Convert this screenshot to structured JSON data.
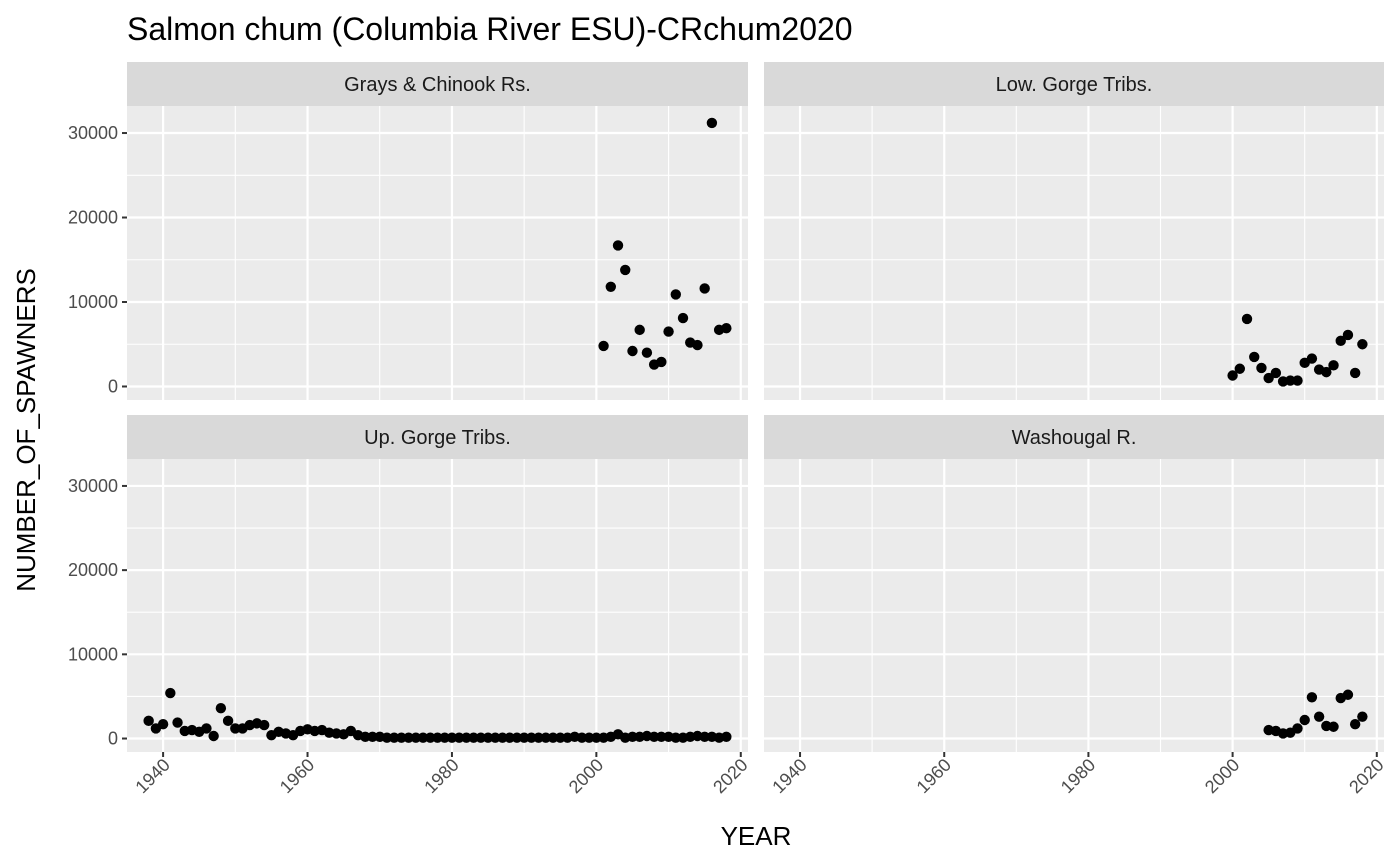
{
  "chart_data": {
    "type": "scatter",
    "title": "Salmon chum (Columbia River ESU)-CRchum2020",
    "xlabel": "YEAR",
    "ylabel": "NUMBER_OF_SPAWNERS",
    "xlim": [
      1935,
      2021
    ],
    "ylim": [
      -1600,
      33200
    ],
    "x_ticks": [
      1940,
      1960,
      1980,
      2000,
      2020
    ],
    "y_ticks": [
      0,
      10000,
      20000,
      30000
    ],
    "grid": true,
    "facets": [
      {
        "name": "Grays & Chinook Rs.",
        "points": [
          [
            2001,
            4800
          ],
          [
            2002,
            11800
          ],
          [
            2003,
            16700
          ],
          [
            2004,
            13800
          ],
          [
            2005,
            4200
          ],
          [
            2006,
            6700
          ],
          [
            2007,
            4000
          ],
          [
            2008,
            2600
          ],
          [
            2009,
            2900
          ],
          [
            2010,
            6500
          ],
          [
            2011,
            10900
          ],
          [
            2012,
            8100
          ],
          [
            2013,
            5200
          ],
          [
            2014,
            4900
          ],
          [
            2015,
            11600
          ],
          [
            2016,
            31200
          ],
          [
            2017,
            6700
          ],
          [
            2018,
            6900
          ]
        ]
      },
      {
        "name": "Low. Gorge Tribs.",
        "points": [
          [
            2000,
            1300
          ],
          [
            2001,
            2100
          ],
          [
            2002,
            8000
          ],
          [
            2003,
            3500
          ],
          [
            2004,
            2200
          ],
          [
            2005,
            1000
          ],
          [
            2006,
            1600
          ],
          [
            2007,
            600
          ],
          [
            2008,
            700
          ],
          [
            2009,
            700
          ],
          [
            2010,
            2800
          ],
          [
            2011,
            3300
          ],
          [
            2012,
            2000
          ],
          [
            2013,
            1700
          ],
          [
            2014,
            2500
          ],
          [
            2015,
            5400
          ],
          [
            2016,
            6100
          ],
          [
            2017,
            1600
          ],
          [
            2018,
            5000
          ]
        ]
      },
      {
        "name": "Up. Gorge Tribs.",
        "points": [
          [
            1938,
            2100
          ],
          [
            1939,
            1200
          ],
          [
            1940,
            1700
          ],
          [
            1941,
            5400
          ],
          [
            1942,
            1900
          ],
          [
            1943,
            900
          ],
          [
            1944,
            1000
          ],
          [
            1945,
            800
          ],
          [
            1946,
            1200
          ],
          [
            1947,
            300
          ],
          [
            1948,
            3600
          ],
          [
            1949,
            2100
          ],
          [
            1950,
            1200
          ],
          [
            1951,
            1200
          ],
          [
            1952,
            1600
          ],
          [
            1953,
            1800
          ],
          [
            1954,
            1600
          ],
          [
            1955,
            400
          ],
          [
            1956,
            800
          ],
          [
            1957,
            600
          ],
          [
            1958,
            400
          ],
          [
            1959,
            900
          ],
          [
            1960,
            1100
          ],
          [
            1961,
            900
          ],
          [
            1962,
            1000
          ],
          [
            1963,
            700
          ],
          [
            1964,
            600
          ],
          [
            1965,
            500
          ],
          [
            1966,
            900
          ],
          [
            1967,
            400
          ],
          [
            1968,
            200
          ],
          [
            1969,
            200
          ],
          [
            1970,
            200
          ],
          [
            1971,
            100
          ],
          [
            1972,
            100
          ],
          [
            1973,
            100
          ],
          [
            1974,
            100
          ],
          [
            1975,
            100
          ],
          [
            1976,
            100
          ],
          [
            1977,
            100
          ],
          [
            1978,
            100
          ],
          [
            1979,
            100
          ],
          [
            1980,
            100
          ],
          [
            1981,
            100
          ],
          [
            1982,
            100
          ],
          [
            1983,
            100
          ],
          [
            1984,
            100
          ],
          [
            1985,
            100
          ],
          [
            1986,
            100
          ],
          [
            1987,
            100
          ],
          [
            1988,
            100
          ],
          [
            1989,
            100
          ],
          [
            1990,
            100
          ],
          [
            1991,
            100
          ],
          [
            1992,
            100
          ],
          [
            1993,
            100
          ],
          [
            1994,
            100
          ],
          [
            1995,
            100
          ],
          [
            1996,
            100
          ],
          [
            1997,
            200
          ],
          [
            1998,
            100
          ],
          [
            1999,
            100
          ],
          [
            2000,
            100
          ],
          [
            2001,
            100
          ],
          [
            2002,
            200
          ],
          [
            2003,
            500
          ],
          [
            2004,
            100
          ],
          [
            2005,
            200
          ],
          [
            2006,
            200
          ],
          [
            2007,
            300
          ],
          [
            2008,
            200
          ],
          [
            2009,
            200
          ],
          [
            2010,
            200
          ],
          [
            2011,
            100
          ],
          [
            2012,
            100
          ],
          [
            2013,
            200
          ],
          [
            2014,
            300
          ],
          [
            2015,
            200
          ],
          [
            2016,
            200
          ],
          [
            2017,
            100
          ],
          [
            2018,
            200
          ]
        ]
      },
      {
        "name": "Washougal R.",
        "points": [
          [
            2005,
            1000
          ],
          [
            2006,
            900
          ],
          [
            2007,
            600
          ],
          [
            2008,
            700
          ],
          [
            2009,
            1200
          ],
          [
            2010,
            2200
          ],
          [
            2011,
            4900
          ],
          [
            2012,
            2600
          ],
          [
            2013,
            1500
          ],
          [
            2014,
            1400
          ],
          [
            2015,
            4800
          ],
          [
            2016,
            5200
          ],
          [
            2017,
            1700
          ],
          [
            2018,
            2600
          ]
        ]
      }
    ]
  }
}
